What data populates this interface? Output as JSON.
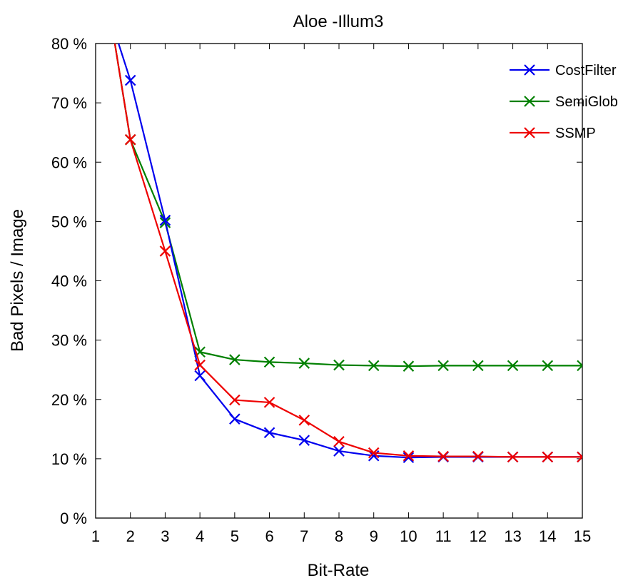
{
  "chart_data": {
    "type": "line",
    "title": "Aloe -Illum3",
    "xlabel": "Bit-Rate",
    "ylabel": "Bad Pixels / Image",
    "xlim": [
      1,
      15
    ],
    "ylim": [
      0,
      80
    ],
    "x_ticks": [
      "1",
      "2",
      "3",
      "4",
      "5",
      "6",
      "7",
      "8",
      "9",
      "10",
      "11",
      "12",
      "13",
      "14",
      "15"
    ],
    "y_ticks": [
      "0 %",
      "10 %",
      "20 %",
      "30 %",
      "40 %",
      "50 %",
      "60 %",
      "70 %",
      "80 %"
    ],
    "grid": false,
    "legend_position": "top-right",
    "x": [
      1,
      2,
      3,
      4,
      5,
      6,
      7,
      8,
      9,
      10,
      11,
      12,
      13,
      14,
      15
    ],
    "series": [
      {
        "name": "CostFilter",
        "color": "#0000ee",
        "values": [
          92,
          73.8,
          50.2,
          24.0,
          16.7,
          14.4,
          13.1,
          11.3,
          10.5,
          10.2,
          10.3,
          10.3,
          10.3,
          10.3,
          10.3
        ]
      },
      {
        "name": "SemiGlob",
        "color": "#008000",
        "values": [
          100,
          63.8,
          49.8,
          28.0,
          26.7,
          26.3,
          26.1,
          25.8,
          25.7,
          25.6,
          25.7,
          25.7,
          25.7,
          25.7,
          25.7
        ]
      },
      {
        "name": "SSMP",
        "color": "#ee0000",
        "values": [
          100,
          63.8,
          45.0,
          25.8,
          19.9,
          19.5,
          16.5,
          12.9,
          11.0,
          10.5,
          10.4,
          10.4,
          10.3,
          10.3,
          10.3
        ]
      }
    ]
  }
}
